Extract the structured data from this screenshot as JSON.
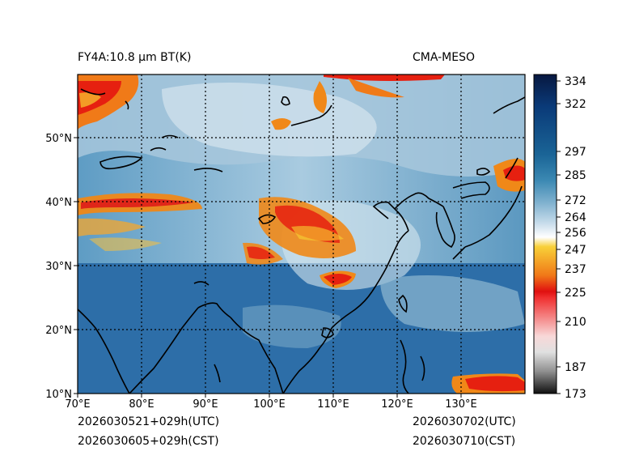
{
  "header": {
    "title": "FY4A:10.8 µm BT(K)",
    "source": "CMA-MESO"
  },
  "footer": {
    "init_utc": "2026030521+029h(UTC)",
    "init_cst": "2026030605+029h(CST)",
    "valid_utc": "2026030702(UTC)",
    "valid_cst": "2026030710(CST)"
  },
  "map": {
    "lon_range": [
      70,
      140
    ],
    "lat_range": [
      10,
      60
    ],
    "lon_labels": [
      "70°E",
      "80°E",
      "90°E",
      "100°E",
      "110°E",
      "120°E",
      "130°E"
    ],
    "lat_labels": [
      "10°N",
      "20°N",
      "30°N",
      "40°N",
      "50°N"
    ]
  },
  "colorbar": {
    "ticks": [
      "334",
      "322",
      "297",
      "285",
      "272",
      "264",
      "256",
      "247",
      "237",
      "225",
      "210",
      "187",
      "173"
    ],
    "colors": {
      "warm_ocean": "#2e6fa8",
      "cloud_light": "#c6dbe8",
      "cloud_cold_red": "#e62010",
      "cloud_orange": "#f08818",
      "cloud_yellow": "#f8d030",
      "coast": "#000000"
    }
  }
}
